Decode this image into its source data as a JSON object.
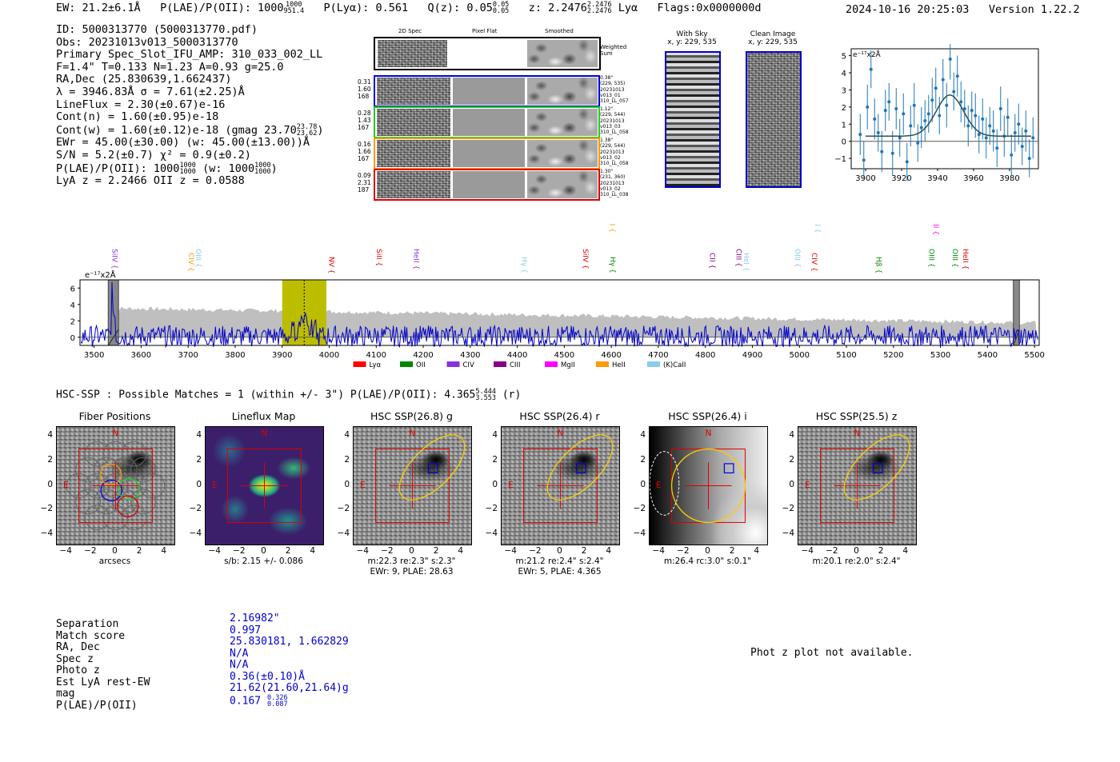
{
  "header": {
    "ew": "EW: 21.2±6.1Å",
    "plae_label": "P(LAE)/P(OII): 1000",
    "plae_hi": "1000",
    "plae_lo": "951.4",
    "plya": "P(Lyα): 0.561",
    "qz_label": "Q(z): 0.05",
    "qz_hi": "0.05",
    "qz_lo": "0.05",
    "z_label": "z: 2.2476",
    "z_hi": "2.2476",
    "z_lo": "2.2476",
    "z_line": "Lyα",
    "flags": "Flags:0x0000000d",
    "timestamp": "2024-10-16 20:25:03",
    "version": "Version 1.22.2"
  },
  "info": {
    "id": "ID: 5000313770 (5000313770.pdf)",
    "obs": "Obs: 20231013v013_5000313770",
    "primary": "Primary Spec_Slot_IFU_AMP: 310_033_002_LL",
    "params": "F=1.4\"  T=0.133  N=1.23  A=0.93  g=25.0",
    "radec": "RA,Dec (25.830639,1.662437)",
    "lambda": "λ = 3946.83Å  σ = 7.61(±2.25)Å",
    "lineflux": "LineFlux = 2.30(±0.67)e-16",
    "contn": "Cont(n) = 1.60(±0.95)e-18",
    "contw": "Cont(w) = 1.60(±0.12)e-18 (gmag 23.70",
    "contw_hi": "23.78",
    "contw_lo": "23.62",
    "contw_end": ")",
    "ewr": "EWr = 45.00(±30.00) (w: 45.00(±13.00))Å",
    "sn": "S/N = 5.2(±0.7)  χ² = 0.9(±0.2)",
    "plae": "P(LAE)/P(OII): 1000",
    "plae_hi": "1000",
    "plae_lo": "1000",
    "plae_w": "(w: 1000",
    "plae_w_hi": "1000",
    "plae_w_lo": "1000",
    "plae_end": ")",
    "lyaz": "LyA z = 2.2466  OII z = 0.0588"
  },
  "spec2d": {
    "col_2d": "2D Spec",
    "col_flat": "Pixel Flat",
    "col_smooth": "Smoothed",
    "weighted": "Weighted",
    "sum": "Sum",
    "rows": [
      {
        "w1": "0.31",
        "w2": "1.60",
        "w3": "168",
        "color": "#0000dd",
        "d1": "0.38\"",
        "d2": "(229, 535)",
        "d3": "20231013",
        "d4": "v013_01",
        "d5": "310_LL_057"
      },
      {
        "w1": "0.28",
        "w2": "1.43",
        "w3": "167",
        "color": "#22cc22",
        "d1": "1.12\"",
        "d2": "(229, 544)",
        "d3": "20231013",
        "d4": "v013_03",
        "d5": "310_LL_058"
      },
      {
        "w1": "0.16",
        "w2": "1.66",
        "w3": "167",
        "color": "#ff9900",
        "d1": "1.38\"",
        "d2": "(229, 544)",
        "d3": "20231013",
        "d4": "v013_02",
        "d5": "310_LL_058"
      },
      {
        "w1": "0.09",
        "w2": "2.31",
        "w3": "187",
        "color": "#dd0000",
        "d1": "1.30\"",
        "d2": "(231, 360)",
        "d3": "20231013",
        "d4": "v013_02",
        "d5": "310_LL_038"
      }
    ]
  },
  "cutouts": {
    "with_sky": "With Sky",
    "with_sky_xy": "x, y: 229, 535",
    "clean": "Clean Image",
    "clean_xy": "x, y: 229, 535"
  },
  "chart_data": [
    {
      "type": "line",
      "title": "",
      "scale_label": "e⁻¹⁷x2Å",
      "xlim": [
        3892,
        3996
      ],
      "ylim": [
        -1.6,
        5.4
      ],
      "xticks": [
        "3900",
        "3920",
        "3940",
        "3960",
        "3980"
      ],
      "yticks": [
        "5",
        "4",
        "3",
        "2",
        "1",
        "0",
        "−1"
      ],
      "x": [
        3897,
        3899,
        3901,
        3903,
        3905,
        3907,
        3909,
        3911,
        3913,
        3915,
        3917,
        3919,
        3921,
        3923,
        3925,
        3927,
        3929,
        3931,
        3933,
        3935,
        3937,
        3939,
        3941,
        3943,
        3945,
        3947,
        3949,
        3951,
        3953,
        3955,
        3957,
        3959,
        3961,
        3963,
        3965,
        3967,
        3969,
        3971,
        3973,
        3975,
        3977,
        3979,
        3981,
        3983,
        3985,
        3987,
        3989,
        3991,
        3993
      ],
      "values": [
        0.4,
        -1.1,
        2.0,
        4.2,
        1.3,
        0.5,
        -0.6,
        1.8,
        2.3,
        -0.7,
        1.9,
        0.2,
        1.6,
        -1.2,
        0.9,
        2.1,
        -0.1,
        0.8,
        1.2,
        1.6,
        2.4,
        3.1,
        1.5,
        3.6,
        2.1,
        4.8,
        2.9,
        3.8,
        2.3,
        1.9,
        0.9,
        1.8,
        1.5,
        0.4,
        1.3,
        0.2,
        0.9,
        0.6,
        -0.4,
        1.9,
        0.3,
        1.4,
        -0.8,
        0.5,
        1.0,
        -0.3,
        0.6,
        -1.0,
        0.2
      ],
      "errors": [
        1.2,
        1.1,
        1.3,
        1.1,
        1.2,
        1.1,
        1.2,
        1.2,
        1.1,
        1.3,
        1.2,
        1.1,
        1.2,
        1.1,
        1.2,
        1.3,
        1.1,
        1.2,
        1.2,
        1.1,
        1.3,
        1.2,
        1.1,
        1.2,
        1.3,
        1.2,
        1.1,
        1.2,
        1.2,
        1.1,
        1.2,
        1.1,
        1.3,
        1.1,
        1.2,
        1.2,
        1.1,
        1.2,
        1.1,
        1.3,
        1.2,
        1.1,
        1.2,
        1.1,
        1.2,
        1.1,
        1.2,
        1.1,
        1.2
      ],
      "fit": {
        "continuum": 0.3,
        "amp": 2.4,
        "center": 3946.83,
        "sigma": 7.61
      }
    },
    {
      "type": "line",
      "title": "",
      "scale_label": "e⁻¹⁷x2Å",
      "xlim": [
        3470,
        5510
      ],
      "ylim": [
        -1.0,
        7.0
      ],
      "xticks": [
        "3500",
        "3600",
        "3700",
        "3800",
        "3900",
        "4000",
        "4100",
        "4200",
        "4300",
        "4400",
        "4500",
        "4600",
        "4700",
        "4800",
        "4900",
        "5000",
        "5100",
        "5200",
        "5300",
        "5400",
        "5500"
      ],
      "yticks": [
        "6",
        "4",
        "2",
        "0"
      ],
      "highlight": [
        3900,
        3994
      ],
      "line_center": 3946.83,
      "masked": [
        [
          3530,
          3552
        ],
        [
          5455,
          5468
        ]
      ],
      "lines": [
        {
          "name": "SiIV",
          "wave": 3539,
          "color": "#8833dd",
          "level": 0
        },
        {
          "name": "CIV",
          "wave": 3701,
          "color": "#ff9900",
          "level": 0
        },
        {
          "name": "OIII",
          "wave": 3717,
          "color": "#88ccee",
          "level": 0
        },
        {
          "name": "NV",
          "wave": 4000,
          "color": "#dd0000",
          "level": 0
        },
        {
          "name": "SiII",
          "wave": 4101,
          "color": "#dd0000",
          "level": 0
        },
        {
          "name": "HeII",
          "wave": 4180,
          "color": "#8833dd",
          "level": 0
        },
        {
          "name": "Hγ",
          "wave": 4410,
          "color": "#88ccee",
          "level": 0
        },
        {
          "name": "SiIV",
          "wave": 4540,
          "color": "#dd0000",
          "level": 0
        },
        {
          "name": "CIII",
          "wave": 4597,
          "color": "#ff9900",
          "level": 1
        },
        {
          "name": "Hγ",
          "wave": 4598,
          "color": "#008800",
          "level": 0
        },
        {
          "name": "CII",
          "wave": 4810,
          "color": "#880088",
          "level": 0
        },
        {
          "name": "CIII",
          "wave": 4866,
          "color": "#880088",
          "level": 0
        },
        {
          "name": "HeI",
          "wave": 4882,
          "color": "#88ccee",
          "level": 0
        },
        {
          "name": "OIII",
          "wave": 4991,
          "color": "#88ccee",
          "level": 0
        },
        {
          "name": "CIV",
          "wave": 5027,
          "color": "#dd0000",
          "level": 0
        },
        {
          "name": "OIII",
          "wave": 5034,
          "color": "#88ccee",
          "level": 1
        },
        {
          "name": "Hβ",
          "wave": 5164,
          "color": "#008800",
          "level": 0
        },
        {
          "name": "OIII",
          "wave": 5276,
          "color": "#008800",
          "level": 0
        },
        {
          "name": "OII",
          "wave": 5285,
          "color": "#ff00ff",
          "level": 1
        },
        {
          "name": "OIII",
          "wave": 5326,
          "color": "#008800",
          "level": 0
        },
        {
          "name": "HeII",
          "wave": 5348,
          "color": "#dd0000",
          "level": 0
        }
      ],
      "legend": [
        {
          "name": "Lyα",
          "color": "#ff0000"
        },
        {
          "name": "OII",
          "color": "#008800"
        },
        {
          "name": "CIV",
          "color": "#8833dd"
        },
        {
          "name": "CIII",
          "color": "#880088"
        },
        {
          "name": "MgII",
          "color": "#ff00ff"
        },
        {
          "name": "HeII",
          "color": "#ff9900"
        },
        {
          "name": "(K)CaII",
          "color": "#88ccee"
        }
      ]
    }
  ],
  "hsc": {
    "summary": "HSC-SSP : Possible Matches = 1 (within +/- 3\")  P(LAE)/P(OII): 4.365",
    "summary_hi": "5.444",
    "summary_lo": "3.553",
    "summary_band": "(r)",
    "panels": [
      {
        "title": "Fiber Positions",
        "caption1": "arcsecs",
        "caption2": ""
      },
      {
        "title": "Lineflux Map",
        "caption1": "s/b: 2.15 +/- 0.086",
        "caption2": ""
      },
      {
        "title": "HSC SSP(26.8) g",
        "caption1": "m:22.3  re:2.3\"  s:2.3\"",
        "caption2": "EWr: 9, PLAE: 28.63"
      },
      {
        "title": "HSC SSP(26.4) r",
        "caption1": "m:21.2  re:2.4\"  s:2.4\"",
        "caption2": "EWr: 5, PLAE: 4.365"
      },
      {
        "title": "HSC SSP(26.4) i",
        "caption1": "m:26.4 rc:3.0\"  s:0.1\"",
        "caption2": ""
      },
      {
        "title": "HSC SSP(25.5) z",
        "caption1": "m:20.1  re:2.0\"  s:2.4\"",
        "caption2": ""
      }
    ],
    "xticks": [
      "−4",
      "−2",
      "0",
      "2",
      "4"
    ],
    "yticks": [
      "4",
      "2",
      "0",
      "−2",
      "−4"
    ],
    "north": "N",
    "east": "E"
  },
  "details": {
    "labels": [
      "Separation",
      "Match score",
      "RA, Dec",
      "Spec z",
      "Photo z",
      "Est LyA rest-EW",
      "mag",
      "P(LAE)/P(OII)"
    ],
    "values": [
      "2.16982\"",
      "0.997",
      "25.830181, 1.662829",
      "N/A",
      "N/A",
      "0.36(±0.10)Å",
      "21.62(21.60,21.64)g",
      "0.167"
    ],
    "plae_hi": "0.326",
    "plae_lo": "0.087",
    "photz_msg": "Phot z plot not available."
  }
}
